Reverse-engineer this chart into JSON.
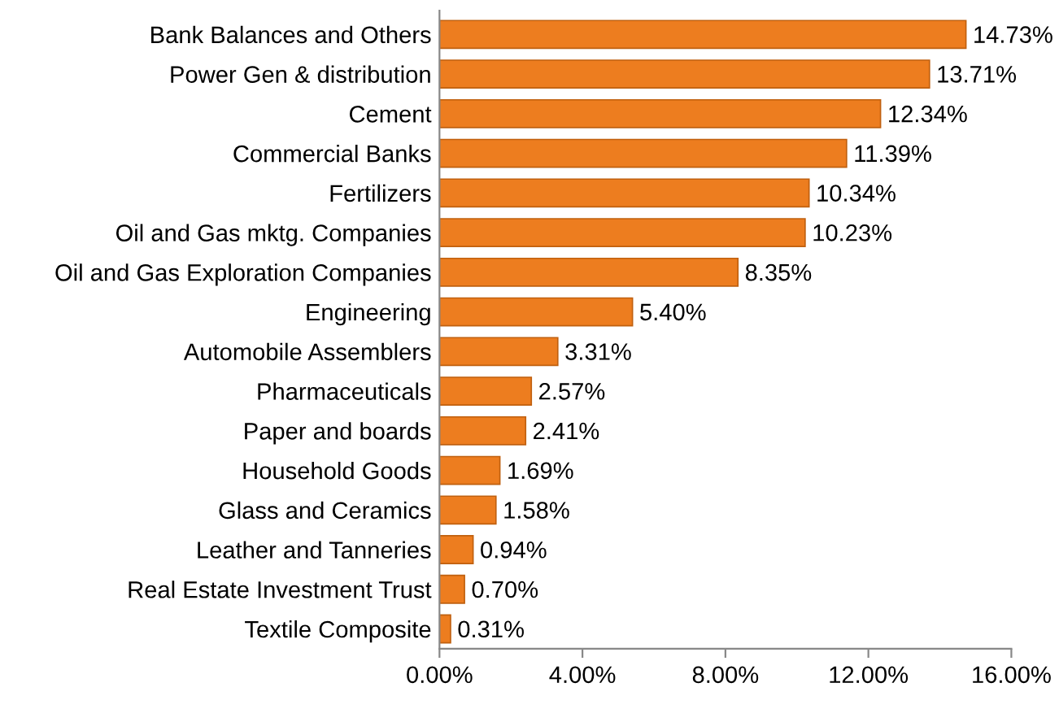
{
  "chart_data": {
    "type": "bar",
    "orientation": "horizontal",
    "categories": [
      "Bank Balances and Others",
      "Power Gen & distribution",
      "Cement",
      "Commercial Banks",
      "Fertilizers",
      "Oil and Gas mktg. Companies",
      "Oil and Gas Exploration Companies",
      "Engineering",
      "Automobile Assemblers",
      "Pharmaceuticals",
      "Paper and boards",
      "Household Goods",
      "Glass and Ceramics",
      "Leather and Tanneries",
      "Real Estate Investment Trust",
      "Textile Composite"
    ],
    "values": [
      14.73,
      13.71,
      12.34,
      11.39,
      10.34,
      10.23,
      8.35,
      5.4,
      3.31,
      2.57,
      2.41,
      1.69,
      1.58,
      0.94,
      0.7,
      0.31
    ],
    "value_labels": [
      "14.73%",
      "13.71%",
      "12.34%",
      "11.39%",
      "10.34%",
      "10.23%",
      "8.35%",
      "5.40%",
      "3.31%",
      "2.57%",
      "2.41%",
      "1.69%",
      "1.58%",
      "0.94%",
      "0.70%",
      "0.31%"
    ],
    "color": "#ed7d1f",
    "xlim": [
      0,
      16
    ],
    "xticks": [
      {
        "value": 0,
        "label": "0.00%"
      },
      {
        "value": 4,
        "label": "4.00%"
      },
      {
        "value": 8,
        "label": "8.00%"
      },
      {
        "value": 12,
        "label": "12.00%"
      },
      {
        "value": 16,
        "label": "16.00%"
      }
    ],
    "grid": false,
    "legend": false
  }
}
